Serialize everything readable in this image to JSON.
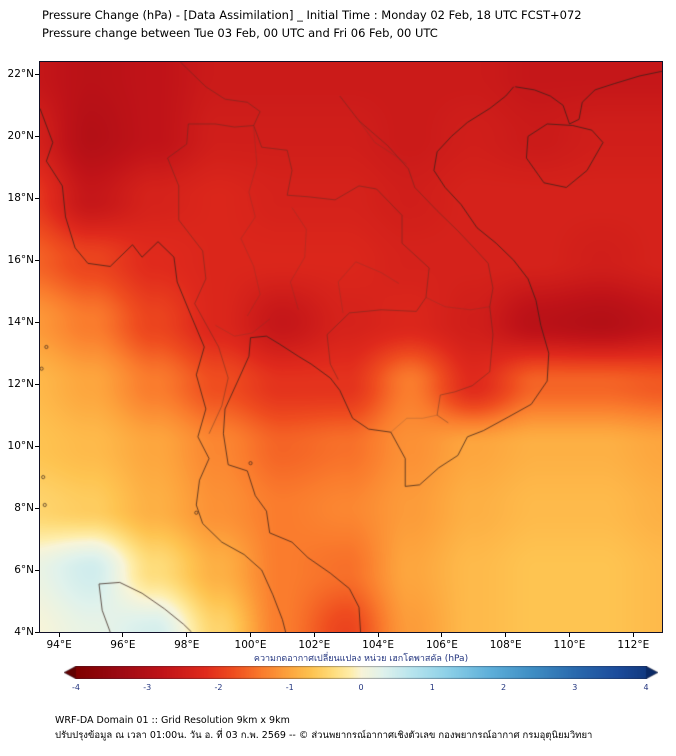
{
  "header": {
    "title_line1": "Pressure Change (hPa) - [Data Assimilation] _ Initial Time : Monday 02 Feb, 18 UTC FCST+072",
    "title_line2": "Pressure change between Tue 03 Feb, 00 UTC and Fri 06 Feb, 00 UTC"
  },
  "chart_data": {
    "type": "heatmap",
    "title": "Pressure Change (hPa) - [Data Assimilation] _ Initial Time : Monday 02 Feb, 18 UTC FCST+072",
    "subtitle": "Pressure change between Tue 03 Feb, 00 UTC and Fri 06 Feb, 00 UTC",
    "x_axis": {
      "label": "longitude",
      "range": [
        93.4,
        112.9
      ],
      "tick_values": [
        94,
        96,
        98,
        100,
        102,
        104,
        106,
        108,
        110,
        112
      ],
      "ticks": [
        "94°E",
        "96°E",
        "98°E",
        "100°E",
        "102°E",
        "104°E",
        "106°E",
        "108°E",
        "110°E",
        "112°E"
      ]
    },
    "y_axis": {
      "label": "latitude",
      "range": [
        4.0,
        22.4
      ],
      "tick_values": [
        4,
        6,
        8,
        10,
        12,
        14,
        16,
        18,
        20,
        22
      ],
      "ticks": [
        "4°N",
        "6°N",
        "8°N",
        "10°N",
        "12°N",
        "14°N",
        "16°N",
        "18°N",
        "20°N",
        "22°N"
      ]
    },
    "colorbar": {
      "label": "ความกดอากาศเปลี่ยนแปลง หน่วย เฮกโตพาสคัล (hPa)",
      "range": [
        -4,
        4
      ],
      "ticks": [
        -4,
        -3,
        -2,
        -1,
        0,
        1,
        2,
        3,
        4
      ],
      "text_color": "#23357f",
      "colormap": [
        [
          -4.5,
          "#600000"
        ],
        [
          -4.0,
          "#7f0000"
        ],
        [
          -3.4,
          "#9d0a13"
        ],
        [
          -2.8,
          "#c01318"
        ],
        [
          -2.2,
          "#e02a1c"
        ],
        [
          -1.8,
          "#ef4d1f"
        ],
        [
          -1.4,
          "#fa7c2d"
        ],
        [
          -1.0,
          "#fda63e"
        ],
        [
          -0.7,
          "#fec451"
        ],
        [
          -0.4,
          "#fedd7c"
        ],
        [
          -0.15,
          "#feeeab"
        ],
        [
          0.0,
          "#f8f4d8"
        ],
        [
          0.3,
          "#e0f2ec"
        ],
        [
          0.7,
          "#b8e5ee"
        ],
        [
          1.2,
          "#8ed1e8"
        ],
        [
          1.8,
          "#5fb0da"
        ],
        [
          2.4,
          "#3f8ec4"
        ],
        [
          3.0,
          "#2a6aae"
        ],
        [
          3.6,
          "#1c4c9c"
        ],
        [
          4.0,
          "#123a80"
        ],
        [
          4.5,
          "#0a2a66"
        ]
      ]
    },
    "grid": {
      "units": "hPa",
      "lons": [
        93,
        95,
        97,
        99,
        101,
        103,
        105,
        107,
        109,
        111,
        113
      ],
      "lats": [
        22,
        20,
        18,
        16,
        14,
        12,
        10,
        8,
        6,
        4
      ],
      "values_hpa": [
        [
          -2.7,
          -2.9,
          -2.8,
          -2.6,
          -2.6,
          -2.6,
          -2.6,
          -2.6,
          -2.7,
          -2.7,
          -2.7
        ],
        [
          -2.4,
          -3.0,
          -2.8,
          -2.5,
          -2.5,
          -2.5,
          -2.6,
          -2.5,
          -2.6,
          -2.5,
          -2.5
        ],
        [
          -2.0,
          -2.7,
          -2.4,
          -2.3,
          -2.4,
          -2.4,
          -2.5,
          -2.4,
          -2.4,
          -2.4,
          -2.4
        ],
        [
          -1.6,
          -1.9,
          -2.2,
          -2.3,
          -2.3,
          -2.3,
          -2.4,
          -2.4,
          -2.4,
          -2.5,
          -2.4
        ],
        [
          -1.1,
          -1.4,
          -1.9,
          -2.3,
          -2.7,
          -2.4,
          -2.3,
          -2.5,
          -2.9,
          -3.0,
          -2.8
        ],
        [
          -0.8,
          -1.0,
          -1.4,
          -1.8,
          -2.1,
          -2.1,
          -1.4,
          -2.2,
          -1.6,
          -1.6,
          -1.7
        ],
        [
          -0.7,
          -0.8,
          -1.0,
          -1.3,
          -1.6,
          -1.5,
          -1.2,
          -1.0,
          -0.9,
          -0.9,
          -1.0
        ],
        [
          -0.5,
          -0.6,
          -0.9,
          -1.2,
          -1.4,
          -1.3,
          -1.1,
          -0.9,
          -0.8,
          -0.8,
          -0.9
        ],
        [
          0.15,
          0.45,
          -0.4,
          -0.9,
          -1.4,
          -1.5,
          -1.0,
          -0.8,
          -0.7,
          -0.7,
          -0.8
        ],
        [
          0.0,
          0.2,
          0.4,
          -0.5,
          -1.4,
          -1.9,
          -1.1,
          -0.8,
          -0.7,
          -0.7,
          -0.8
        ]
      ]
    }
  },
  "map_overlays": {
    "coastlines": [
      [
        [
          93.4,
          20.9
        ],
        [
          93.8,
          19.8
        ],
        [
          93.6,
          19.2
        ],
        [
          94.1,
          18.4
        ],
        [
          94.2,
          17.4
        ],
        [
          94.5,
          16.4
        ],
        [
          94.9,
          15.9
        ],
        [
          95.6,
          15.8
        ],
        [
          96.3,
          16.5
        ],
        [
          96.6,
          16.1
        ],
        [
          97.1,
          16.6
        ],
        [
          97.6,
          16.1
        ],
        [
          97.7,
          15.3
        ],
        [
          98.1,
          14.3
        ],
        [
          98.55,
          13.2
        ],
        [
          98.3,
          12.3
        ],
        [
          98.6,
          11.2
        ],
        [
          98.35,
          10.3
        ],
        [
          98.7,
          9.6
        ],
        [
          98.4,
          8.9
        ],
        [
          98.3,
          8.1
        ],
        [
          98.5,
          7.5
        ],
        [
          99.1,
          6.9
        ],
        [
          99.8,
          6.5
        ],
        [
          100.35,
          6.0
        ],
        [
          100.7,
          5.2
        ],
        [
          101.0,
          4.4
        ],
        [
          101.1,
          4.0
        ]
      ],
      [
        [
          103.45,
          4.0
        ],
        [
          103.4,
          4.8
        ],
        [
          103.1,
          5.4
        ],
        [
          102.5,
          5.9
        ],
        [
          101.8,
          6.4
        ],
        [
          101.3,
          6.9
        ],
        [
          100.6,
          7.2
        ],
        [
          100.5,
          7.9
        ],
        [
          100.15,
          8.4
        ],
        [
          99.9,
          9.2
        ],
        [
          99.3,
          9.4
        ],
        [
          99.15,
          10.4
        ],
        [
          99.2,
          11.2
        ],
        [
          99.6,
          12.1
        ],
        [
          99.95,
          12.9
        ],
        [
          100.0,
          13.5
        ],
        [
          100.5,
          13.55
        ],
        [
          100.9,
          13.3
        ],
        [
          101.5,
          12.9
        ],
        [
          101.9,
          12.65
        ],
        [
          102.5,
          12.2
        ],
        [
          102.8,
          11.8
        ],
        [
          103.2,
          10.9
        ],
        [
          103.7,
          10.55
        ],
        [
          104.4,
          10.45
        ],
        [
          104.85,
          9.6
        ],
        [
          104.85,
          8.7
        ],
        [
          105.3,
          8.75
        ],
        [
          105.9,
          9.3
        ],
        [
          106.5,
          9.7
        ],
        [
          106.8,
          10.3
        ],
        [
          107.3,
          10.5
        ],
        [
          108.1,
          10.95
        ],
        [
          108.8,
          11.35
        ],
        [
          109.3,
          12.1
        ],
        [
          109.35,
          13.0
        ],
        [
          109.1,
          13.9
        ],
        [
          108.95,
          14.7
        ],
        [
          108.7,
          15.4
        ],
        [
          108.25,
          16.0
        ],
        [
          107.7,
          16.55
        ],
        [
          107.1,
          17.05
        ],
        [
          106.6,
          17.8
        ],
        [
          106.1,
          18.35
        ],
        [
          105.75,
          18.9
        ],
        [
          105.85,
          19.5
        ],
        [
          106.3,
          20.0
        ],
        [
          106.8,
          20.45
        ],
        [
          107.5,
          20.9
        ],
        [
          108.0,
          21.3
        ],
        [
          108.25,
          21.6
        ]
      ],
      [
        [
          108.65,
          19.3
        ],
        [
          108.7,
          20.0
        ],
        [
          109.3,
          20.4
        ],
        [
          110.1,
          20.35
        ],
        [
          110.7,
          20.2
        ],
        [
          111.05,
          19.8
        ],
        [
          110.55,
          18.9
        ],
        [
          109.9,
          18.35
        ],
        [
          109.2,
          18.5
        ],
        [
          108.65,
          19.3
        ]
      ],
      [
        [
          108.3,
          21.6
        ],
        [
          108.9,
          21.5
        ],
        [
          109.4,
          21.3
        ],
        [
          109.8,
          21.0
        ],
        [
          110.0,
          20.4
        ],
        [
          110.3,
          20.55
        ],
        [
          110.4,
          21.1
        ],
        [
          110.8,
          21.5
        ],
        [
          111.4,
          21.7
        ],
        [
          112.2,
          21.95
        ],
        [
          112.9,
          22.1
        ]
      ],
      [
        [
          95.6,
          4.0
        ],
        [
          95.35,
          4.7
        ],
        [
          95.25,
          5.55
        ],
        [
          95.9,
          5.6
        ],
        [
          96.6,
          5.25
        ],
        [
          97.3,
          4.75
        ],
        [
          97.9,
          4.25
        ],
        [
          98.15,
          4.0
        ]
      ]
    ],
    "borders": [
      [
        [
          98.7,
          10.4
        ],
        [
          99.1,
          11.3
        ],
        [
          99.3,
          12.2
        ],
        [
          99.0,
          13.2
        ],
        [
          98.25,
          14.6
        ],
        [
          98.6,
          15.4
        ],
        [
          98.5,
          16.3
        ],
        [
          97.75,
          17.3
        ],
        [
          97.75,
          18.4
        ],
        [
          97.4,
          19.3
        ],
        [
          98.0,
          19.75
        ],
        [
          98.05,
          20.4
        ],
        [
          98.9,
          20.4
        ],
        [
          99.5,
          20.3
        ],
        [
          100.1,
          20.35
        ]
      ],
      [
        [
          100.1,
          20.35
        ],
        [
          100.35,
          19.65
        ],
        [
          101.15,
          19.55
        ],
        [
          101.3,
          18.9
        ],
        [
          101.15,
          18.1
        ],
        [
          101.8,
          18.05
        ],
        [
          102.65,
          17.95
        ],
        [
          103.4,
          18.4
        ],
        [
          103.95,
          18.3
        ],
        [
          104.75,
          17.45
        ],
        [
          104.75,
          16.55
        ],
        [
          105.6,
          15.75
        ],
        [
          105.5,
          14.8
        ],
        [
          105.2,
          14.35
        ],
        [
          104.1,
          14.4
        ],
        [
          103.1,
          14.3
        ],
        [
          102.4,
          13.6
        ],
        [
          102.5,
          12.65
        ],
        [
          102.75,
          12.15
        ]
      ],
      [
        [
          102.8,
          21.3
        ],
        [
          103.4,
          20.5
        ],
        [
          104.3,
          19.7
        ],
        [
          104.95,
          18.95
        ],
        [
          105.15,
          18.35
        ],
        [
          105.85,
          17.6
        ],
        [
          106.5,
          16.95
        ],
        [
          107.05,
          16.35
        ],
        [
          107.45,
          15.9
        ],
        [
          107.6,
          15.1
        ],
        [
          107.5,
          14.5
        ],
        [
          107.6,
          13.6
        ],
        [
          107.5,
          12.4
        ],
        [
          106.95,
          11.95
        ],
        [
          106.4,
          11.75
        ],
        [
          105.95,
          11.65
        ],
        [
          105.85,
          11.0
        ],
        [
          106.2,
          10.75
        ]
      ],
      [
        [
          97.8,
          22.4
        ],
        [
          98.6,
          21.6
        ],
        [
          99.2,
          21.2
        ],
        [
          99.9,
          21.1
        ],
        [
          100.3,
          20.8
        ],
        [
          100.1,
          20.35
        ]
      ]
    ],
    "details": [
      [
        [
          99.9,
          14.2
        ],
        [
          100.3,
          14.9
        ],
        [
          100.1,
          15.8
        ],
        [
          99.7,
          16.7
        ],
        [
          100.15,
          17.4
        ],
        [
          99.95,
          18.2
        ],
        [
          100.2,
          19.1
        ],
        [
          100.1,
          20.3
        ]
      ],
      [
        [
          101.5,
          14.4
        ],
        [
          101.25,
          15.3
        ],
        [
          101.7,
          16.1
        ],
        [
          101.75,
          17.0
        ],
        [
          101.3,
          17.7
        ]
      ],
      [
        [
          102.9,
          14.3
        ],
        [
          102.75,
          15.3
        ],
        [
          103.3,
          15.95
        ],
        [
          104.1,
          15.6
        ],
        [
          104.65,
          15.25
        ]
      ],
      [
        [
          98.9,
          13.9
        ],
        [
          99.5,
          13.55
        ],
        [
          100.05,
          13.65
        ],
        [
          100.6,
          14.1
        ]
      ],
      [
        [
          103.4,
          20.5
        ],
        [
          103.9,
          19.8
        ],
        [
          104.5,
          19.4
        ],
        [
          104.9,
          19.1
        ]
      ],
      [
        [
          105.5,
          14.8
        ],
        [
          106.1,
          14.5
        ],
        [
          106.9,
          14.4
        ],
        [
          107.5,
          14.5
        ]
      ],
      [
        [
          104.4,
          10.45
        ],
        [
          104.9,
          10.9
        ],
        [
          105.4,
          10.9
        ],
        [
          105.85,
          11.0
        ]
      ]
    ],
    "islands": [
      [
        93.55,
        8.1
      ],
      [
        93.5,
        9.0
      ],
      [
        93.45,
        12.5
      ],
      [
        93.6,
        13.2
      ],
      [
        98.3,
        7.85
      ],
      [
        100.0,
        9.45
      ]
    ]
  },
  "footer": {
    "line1": "WRF-DA Domain 01 :: Grid Resolution 9km x 9km",
    "line2": "ปรับปรุงข้อมูล ณ เวลา 01:00น. วัน อ. ที่ 03 ก.พ. 2569 -- © ส่วนพยากรณ์อากาศเชิงตัวเลข กองพยากรณ์อากาศ กรมอุตุนิยมวิทยา"
  }
}
